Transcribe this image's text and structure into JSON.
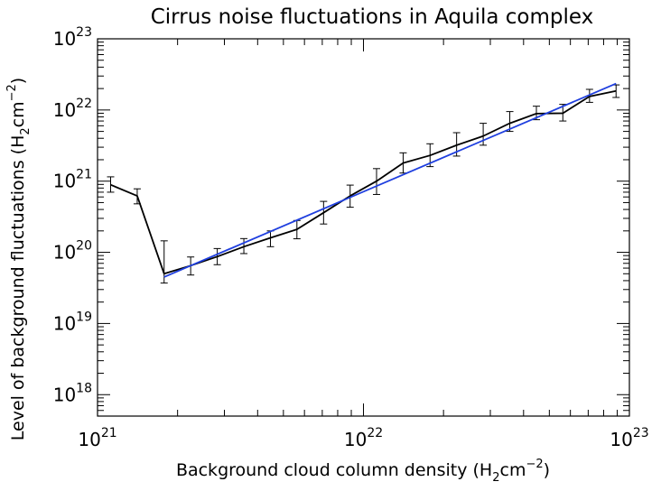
{
  "chart_data": {
    "type": "line",
    "title": "Cirrus noise fluctuations in Aquila complex",
    "xlabel_main": "Background cloud column density (H",
    "xlabel_sub": "2",
    "xlabel_mid": "cm",
    "xlabel_sup": "−2",
    "xlabel_end": ")",
    "ylabel_main": "Level of background fluctuations (H",
    "ylabel_sub": "2",
    "ylabel_mid": "cm",
    "ylabel_sup": "−2",
    "ylabel_end": ")",
    "x_scale": "log",
    "y_scale": "log",
    "xlim": [
      1e+21,
      1e+23
    ],
    "ylim": [
      5e+17,
      1e+23
    ],
    "x_ticks": [
      {
        "value": 1e+21,
        "base": "10",
        "exp": "21"
      },
      {
        "value": 1e+22,
        "base": "10",
        "exp": "22"
      },
      {
        "value": 1e+23,
        "base": "10",
        "exp": "23"
      }
    ],
    "y_ticks": [
      {
        "value": 1e+18,
        "base": "10",
        "exp": "18"
      },
      {
        "value": 1e+19,
        "base": "10",
        "exp": "19"
      },
      {
        "value": 1e+20,
        "base": "10",
        "exp": "20"
      },
      {
        "value": 1e+21,
        "base": "10",
        "exp": "21"
      },
      {
        "value": 1e+22,
        "base": "10",
        "exp": "22"
      },
      {
        "value": 1e+23,
        "base": "10",
        "exp": "23"
      }
    ],
    "grid": false,
    "series": [
      {
        "color": "#000000",
        "x": [
          1.12e+21,
          1.41e+21,
          1.78e+21,
          2.24e+21,
          2.82e+21,
          3.55e+21,
          4.47e+21,
          5.62e+21,
          7.08e+21,
          8.91e+21,
          1.12e+22,
          1.41e+22,
          1.78e+22,
          2.24e+22,
          2.82e+22,
          3.55e+22,
          4.47e+22,
          5.62e+22,
          7.08e+22,
          8.91e+22
        ],
        "y": [
          8.9e+20,
          6.2e+20,
          5e+19,
          6.5e+19,
          8.7e+19,
          1.2e+20,
          1.6e+20,
          2.1e+20,
          3.6e+20,
          6.2e+20,
          1e+21,
          1.8e+21,
          2.3e+21,
          3.2e+21,
          4.3e+21,
          6.5e+21,
          8.9e+21,
          9e+21,
          1.55e+22,
          1.85e+22
        ],
        "y_low": [
          7e+20,
          4.8e+20,
          3.7e+19,
          4.8e+19,
          6.7e+19,
          9.6e+19,
          1.2e+20,
          1.55e+20,
          2.5e+20,
          4.3e+20,
          6.5e+20,
          1.3e+21,
          1.6e+21,
          2.25e+21,
          3.2e+21,
          5e+21,
          7.3e+21,
          7e+21,
          1.28e+22,
          1.5e+22
        ],
        "y_high": [
          1.15e+21,
          7.8e+20,
          1.45e+20,
          8.6e+19,
          1.13e+20,
          1.56e+20,
          2e+20,
          2.8e+20,
          5.2e+20,
          8.8e+20,
          1.5e+21,
          2.5e+21,
          3.35e+21,
          4.8e+21,
          6.5e+21,
          9.5e+21,
          1.13e+22,
          1.2e+22,
          1.95e+22,
          2.25e+22
        ]
      },
      {
        "color": "#1f3fdf",
        "x": [
          1.78e+21,
          8.91e+22
        ],
        "y": [
          4.5e+19,
          2.35e+22
        ]
      }
    ]
  }
}
